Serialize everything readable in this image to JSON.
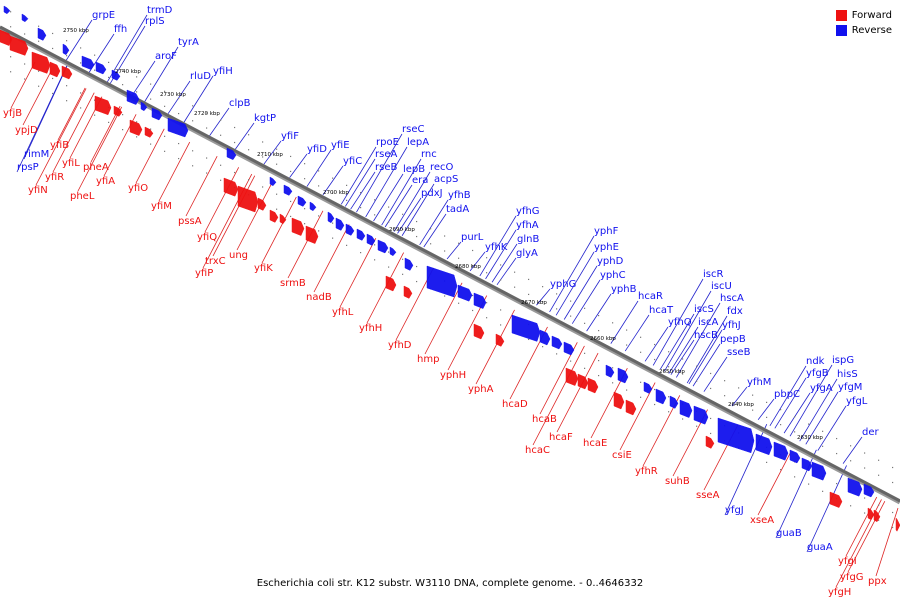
{
  "title": "Escherichia coli str. K12 substr. W3110 DNA, complete genome. - 0..4646332",
  "colors": {
    "forward": "#ee1111",
    "reverse": "#1111ee",
    "axis": "#666666",
    "leader_forward": "#dd2222",
    "leader_reverse": "#2222cc"
  },
  "legend": [
    {
      "label": "Forward",
      "color": "#ee1111"
    },
    {
      "label": "Reverse",
      "color": "#1111ee"
    }
  ],
  "axis_labels": [
    "2750 kbp",
    "2740 kbp",
    "2730 kbp",
    "2720 kbp",
    "2710 kbp",
    "2700 kbp",
    "2690 kbp",
    "2680 kbp",
    "2670 kbp",
    "2660 kbp",
    "2650 kbp",
    "2640 kbp",
    "2630 kbp"
  ],
  "reverse_genes": [
    "grpE",
    "ffh",
    "trmD",
    "rplS",
    "aroF",
    "tyrA",
    "rluD",
    "yfiH",
    "clpB",
    "kgtP",
    "yfiF",
    "yfiD",
    "yfiE",
    "yfiC",
    "rpoE",
    "rseA",
    "rseB",
    "rseC",
    "lepA",
    "rnc",
    "lepB",
    "recO",
    "era",
    "acpS",
    "pdxJ",
    "yfhB",
    "tadA",
    "purL",
    "yfhK",
    "yfhG",
    "yfhA",
    "glnB",
    "glyA",
    "yphG",
    "yphF",
    "yphE",
    "yphD",
    "yphC",
    "yphB",
    "hcaR",
    "hcaT",
    "yfhQ",
    "iscR",
    "iscU",
    "iscS",
    "iscA",
    "hscB",
    "hscA",
    "fdx",
    "yfhJ",
    "pepB",
    "sseB",
    "yfhM",
    "ndk",
    "pbpC",
    "yfgB",
    "yfgA",
    "ispG",
    "hisS",
    "yfgM",
    "yfgL",
    "der",
    "yfgJ",
    "guaB",
    "guaA",
    "rimM",
    "rpsP"
  ],
  "forward_genes": [
    "yfjB",
    "ypjD",
    "yfiB",
    "yfiN",
    "yfiR",
    "yfiL",
    "pheA",
    "pheL",
    "yfiA",
    "yfiO",
    "yfiM",
    "pssA",
    "yfiQ",
    "trxC",
    "yfiP",
    "ung",
    "yfiK",
    "srmB",
    "nadB",
    "yfhL",
    "yfhH",
    "yfhD",
    "hmp",
    "yphH",
    "yphA",
    "hcaD",
    "hcaB",
    "hcaF",
    "hcaC",
    "hcaE",
    "csiE",
    "yfhR",
    "suhB",
    "sseA",
    "xseA",
    "yfgI",
    "yfgG",
    "yfgH",
    "ppx"
  ]
}
